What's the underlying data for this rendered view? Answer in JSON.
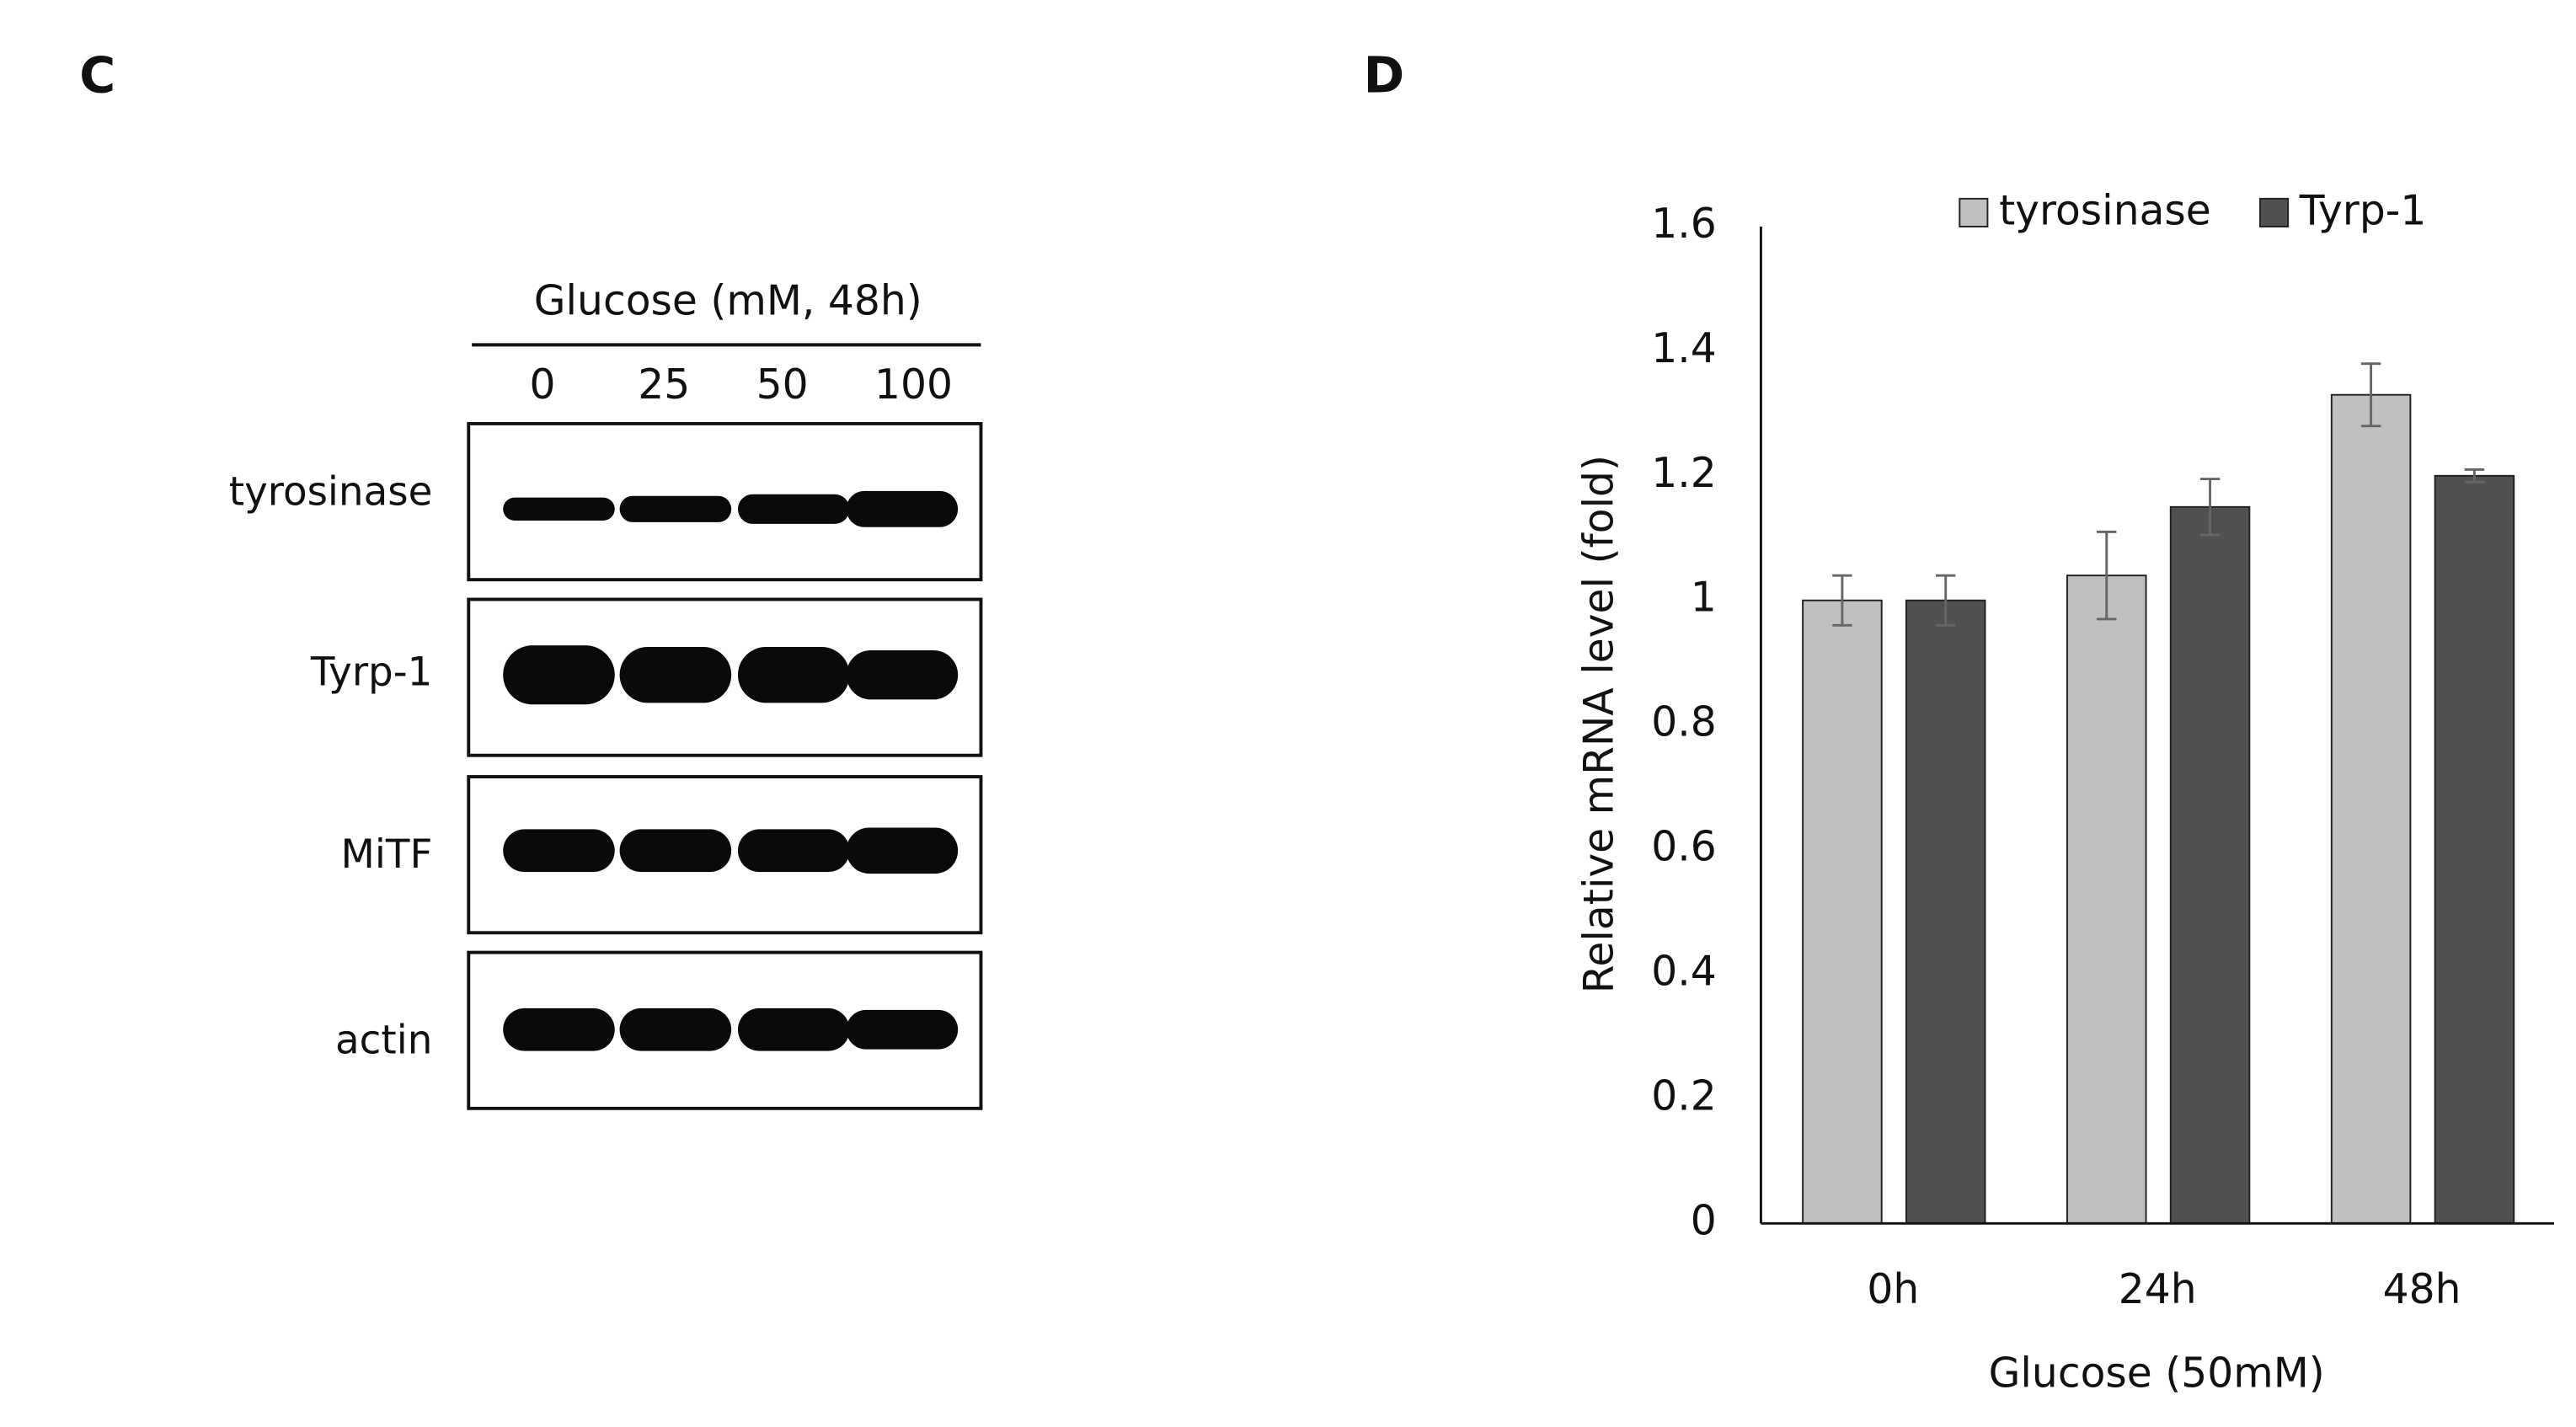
{
  "blot_panel": {
    "label": "C",
    "header": "Glucose (mM, 48h)",
    "lanes": [
      "0",
      "25",
      "50",
      "100"
    ],
    "rows": [
      "tyrosinase",
      "Tyrp-1",
      "MiTF",
      "actin"
    ]
  },
  "chart_data": {
    "type": "bar",
    "panel_label": "D",
    "xlabel": "Glucose (50mM)",
    "ylabel": "Relative mRNA level (fold)",
    "categories": [
      "0h",
      "24h",
      "48h"
    ],
    "series": [
      {
        "name": "tyrosinase",
        "color": "#c0c0c0",
        "values": [
          1.0,
          1.04,
          1.33
        ],
        "errors": [
          0.04,
          0.07,
          0.05
        ]
      },
      {
        "name": "Tyrp-1",
        "color": "#505050",
        "values": [
          1.0,
          1.15,
          1.2
        ],
        "errors": [
          0.04,
          0.045,
          0.01
        ]
      }
    ],
    "ylim": [
      0,
      1.6
    ],
    "yticks": [
      0,
      0.2,
      0.4,
      0.6,
      0.8,
      1,
      1.2,
      1.4,
      1.6
    ],
    "grid": false,
    "legend": "top"
  }
}
